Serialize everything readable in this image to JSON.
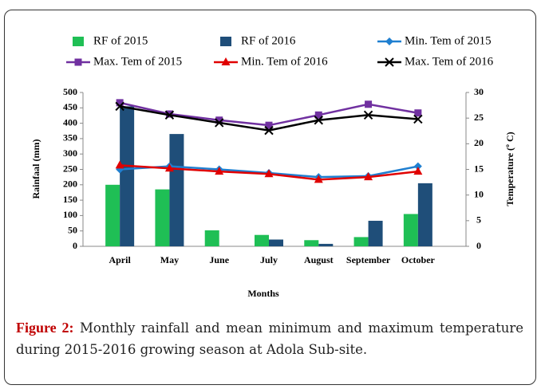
{
  "chart_data": {
    "type": "bar-line",
    "x_label": "Months",
    "y_label": "Rainfaal (mm)",
    "y2_label": "Temperature (º C)",
    "categories": [
      "April",
      "May",
      "June",
      "July",
      "August",
      "September",
      "October"
    ],
    "series": [
      {
        "name": "RF of 2015",
        "type": "bar",
        "color": "#1fbf55",
        "values": [
          200,
          185,
          52,
          37,
          20,
          30,
          105
        ]
      },
      {
        "name": "RF of 2016",
        "type": "bar",
        "color": "#1f4e79",
        "values": [
          455,
          365,
          null,
          22,
          8,
          83,
          205
        ]
      },
      {
        "name": "Min. Tem of 2015",
        "type": "line",
        "axis": "y2",
        "color": "#1f7fd0",
        "marker": "diamond",
        "values": [
          15,
          15.6,
          15,
          14.3,
          13.5,
          13.7,
          15.6
        ]
      },
      {
        "name": "Max. Tem of 2015",
        "type": "line",
        "axis": "y2",
        "color": "#7030a0",
        "marker": "square",
        "values": [
          28,
          25.8,
          24.6,
          23.6,
          25.6,
          27.7,
          26
        ]
      },
      {
        "name": "Min. Tem of 2016",
        "type": "line",
        "axis": "y2",
        "color": "#e00000",
        "marker": "triangle",
        "values": [
          15.8,
          15.2,
          14.6,
          14.1,
          13,
          13.5,
          14.6
        ]
      },
      {
        "name": "Max. Tem of 2016",
        "type": "line",
        "axis": "y2",
        "color": "#000000",
        "marker": "x",
        "values": [
          27.3,
          25.6,
          24.1,
          22.6,
          24.6,
          25.6,
          24.8
        ]
      }
    ],
    "ylim": [
      0,
      500
    ],
    "yticks": [
      0,
      50,
      100,
      150,
      200,
      250,
      300,
      350,
      400,
      450,
      500
    ],
    "y2lim": [
      0,
      30
    ],
    "y2ticks": [
      0,
      5,
      10,
      15,
      20,
      25,
      30
    ]
  },
  "caption": {
    "label": "Figure 2:",
    "text": "Monthly rainfall and mean minimum and maximum temperature during 2015-2016 growing season at Adola Sub-site."
  }
}
